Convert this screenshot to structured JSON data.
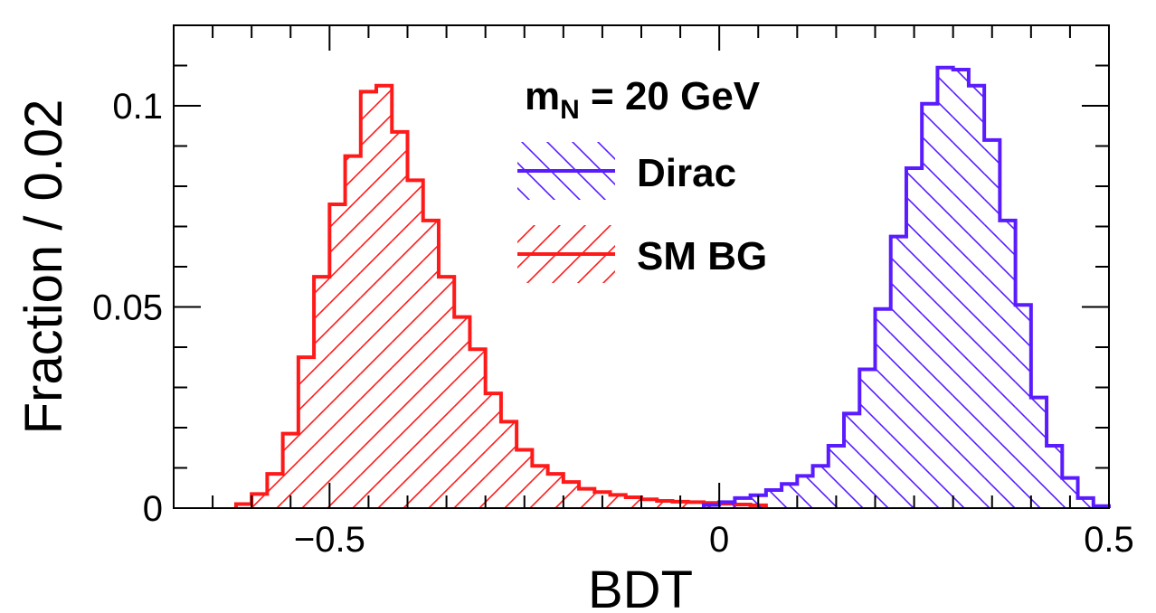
{
  "chart_data": {
    "type": "histogram",
    "title": "",
    "xlabel": "BDT",
    "ylabel": "Fraction / 0.02",
    "xlim": [
      -0.7,
      0.5
    ],
    "ylim": [
      0,
      0.12
    ],
    "bin_width": 0.02,
    "x_ticks": [
      -0.5,
      0,
      0.5
    ],
    "x_tick_labels": [
      "−0.5",
      "0",
      "0.5"
    ],
    "y_ticks": [
      0,
      0.05,
      0.1
    ],
    "y_tick_labels": [
      "0",
      "0.05",
      "0.1"
    ],
    "annotation": {
      "base": "m",
      "subscript": "N",
      "rest": " = 20 GeV"
    },
    "legend": [
      {
        "label": "Dirac",
        "color": "#5a1cff",
        "hatch": "backslash"
      },
      {
        "label": "SM BG",
        "color": "#ff1a1a",
        "hatch": "slash"
      }
    ],
    "series": [
      {
        "name": "Dirac",
        "color": "#5a1cff",
        "hatch": "backslash",
        "bin_start": -0.02,
        "values": [
          0.0008,
          0.0015,
          0.0025,
          0.0032,
          0.0045,
          0.006,
          0.008,
          0.0105,
          0.0155,
          0.0235,
          0.0345,
          0.0495,
          0.0675,
          0.0845,
          0.1005,
          0.1095,
          0.109,
          0.105,
          0.0915,
          0.0715,
          0.0505,
          0.0275,
          0.0155,
          0.0075,
          0.0025,
          0.0005
        ]
      },
      {
        "name": "SM BG",
        "color": "#ff1a1a",
        "hatch": "slash",
        "bin_start": -0.62,
        "values": [
          0.001,
          0.0035,
          0.0085,
          0.0185,
          0.0375,
          0.0575,
          0.0755,
          0.0875,
          0.1035,
          0.105,
          0.0935,
          0.0815,
          0.0715,
          0.0575,
          0.0475,
          0.0395,
          0.0285,
          0.0215,
          0.0145,
          0.0105,
          0.0085,
          0.0065,
          0.0048,
          0.004,
          0.0033,
          0.0027,
          0.0022,
          0.0018,
          0.0016,
          0.0015,
          0.0013,
          0.0011,
          0.0009,
          0.0007
        ]
      }
    ]
  }
}
